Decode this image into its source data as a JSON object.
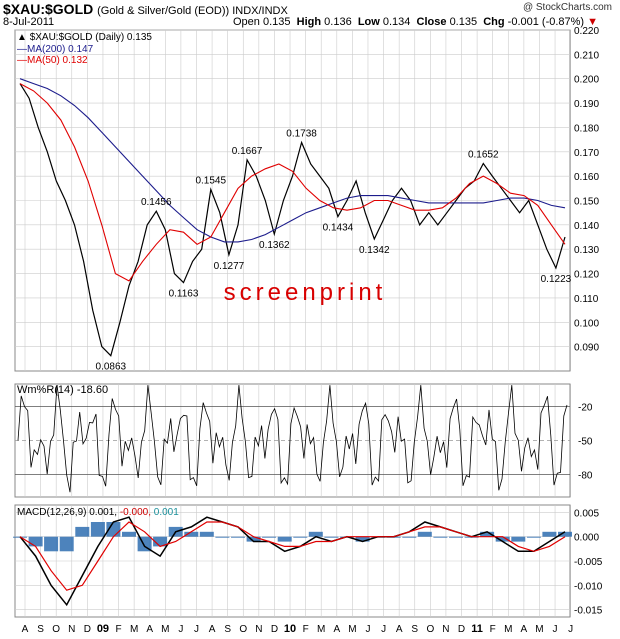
{
  "header": {
    "symbol": "$XAU:$GOLD",
    "subtitle": "(Gold & Silver/Gold (EOD)) INDX/INDX",
    "date": "8-Jul-2011",
    "open_label": "Open",
    "open": "0.135",
    "high_label": "High",
    "high": "0.136",
    "low_label": "Low",
    "low": "0.134",
    "close_label": "Close",
    "close": "0.135",
    "chg_label": "Chg",
    "chg": "-0.001 (-0.87%)",
    "credit": "@ StockCharts.com"
  },
  "watermark": "screenprint",
  "legend": {
    "main": "$XAU:$GOLD (Daily) 0.135",
    "ma200": "MA(200) 0.147",
    "ma50": "MA(50) 0.132",
    "wmr": "Wm%R(14) -18.60",
    "macd_prefix": "MACD(12,26,9) 0.001,",
    "macd_sig": "-0.000,",
    "macd_hist": "0.001"
  },
  "colors": {
    "price": "#000000",
    "ma200": "#1c1c8c",
    "ma50": "#e00000",
    "up_bar": "#000000",
    "down_bar": "#d00000",
    "macd_line": "#000000",
    "signal_line": "#e00000",
    "histogram": "#2e6db0",
    "grid": "#cccccc",
    "watermark": "#d80000"
  },
  "chart_data": {
    "type": "line",
    "x_axis_labels": [
      "A",
      "S",
      "O",
      "N",
      "D",
      "09",
      "F",
      "M",
      "A",
      "M",
      "J",
      "J",
      "A",
      "S",
      "O",
      "N",
      "D",
      "10",
      "F",
      "M",
      "A",
      "M",
      "J",
      "J",
      "A",
      "S",
      "O",
      "N",
      "D",
      "11",
      "F",
      "M",
      "A",
      "M",
      "J",
      "J"
    ],
    "price_panel": {
      "ylim": [
        0.08,
        0.22
      ],
      "y_ticks": [
        "0.090",
        "0.100",
        "0.110",
        "0.120",
        "0.130",
        "0.140",
        "0.150",
        "0.160",
        "0.170",
        "0.180",
        "0.190",
        "0.200",
        "0.210",
        "0.220"
      ],
      "annotations": [
        "0.0863",
        "0.1163",
        "0.1277",
        "0.1362",
        "0.1434",
        "0.1342",
        "0.1456",
        "0.1545",
        "0.1667",
        "0.1738",
        "0.1652",
        "0.1223"
      ],
      "series": [
        {
          "name": "$XAU:$GOLD",
          "values": [
            0.198,
            0.192,
            0.18,
            0.17,
            0.158,
            0.15,
            0.14,
            0.125,
            0.105,
            0.09,
            0.0863,
            0.1,
            0.115,
            0.125,
            0.14,
            0.1456,
            0.138,
            0.12,
            0.1163,
            0.125,
            0.13,
            0.1545,
            0.145,
            0.1277,
            0.14,
            0.1667,
            0.16,
            0.15,
            0.1362,
            0.15,
            0.16,
            0.1738,
            0.165,
            0.16,
            0.155,
            0.1434,
            0.15,
            0.158,
            0.145,
            0.1342,
            0.142,
            0.15,
            0.155,
            0.15,
            0.14,
            0.145,
            0.14,
            0.145,
            0.15,
            0.155,
            0.158,
            0.1652,
            0.16,
            0.155,
            0.15,
            0.145,
            0.15,
            0.14,
            0.13,
            0.1223,
            0.135
          ]
        },
        {
          "name": "MA(200) 0.147",
          "values": [
            0.2,
            0.198,
            0.196,
            0.193,
            0.189,
            0.184,
            0.178,
            0.172,
            0.166,
            0.16,
            0.154,
            0.148,
            0.143,
            0.138,
            0.135,
            0.133,
            0.133,
            0.134,
            0.136,
            0.139,
            0.142,
            0.145,
            0.147,
            0.149,
            0.151,
            0.152,
            0.152,
            0.152,
            0.151,
            0.15,
            0.149,
            0.149,
            0.149,
            0.149,
            0.149,
            0.15,
            0.151,
            0.151,
            0.15,
            0.148,
            0.147
          ]
        },
        {
          "name": "MA(50) 0.132",
          "values": [
            0.198,
            0.195,
            0.19,
            0.183,
            0.172,
            0.158,
            0.14,
            0.12,
            0.117,
            0.125,
            0.132,
            0.138,
            0.137,
            0.132,
            0.135,
            0.145,
            0.155,
            0.16,
            0.163,
            0.165,
            0.162,
            0.155,
            0.15,
            0.147,
            0.146,
            0.147,
            0.15,
            0.15,
            0.148,
            0.146,
            0.146,
            0.147,
            0.151,
            0.157,
            0.16,
            0.157,
            0.153,
            0.152,
            0.148,
            0.14,
            0.132
          ]
        }
      ]
    },
    "wmr_panel": {
      "ylim": [
        -100,
        0
      ],
      "y_ticks": [
        "-20",
        "-50",
        "-80"
      ],
      "latest": -18.6
    },
    "macd_panel": {
      "ylim": [
        -0.0165,
        0.0065
      ],
      "y_ticks": [
        "0.005",
        "0.000",
        "-0.005",
        "-0.010",
        "-0.015"
      ],
      "series": [
        {
          "name": "MACD(12,26,9) 0.001",
          "values": [
            0.0,
            -0.004,
            -0.01,
            -0.014,
            -0.008,
            -0.002,
            0.003,
            0.004,
            -0.002,
            -0.004,
            0.001,
            0.002,
            0.004,
            0.003,
            0.002,
            -0.001,
            -0.001,
            -0.003,
            -0.002,
            0.0,
            -0.001,
            0.0,
            -0.001,
            0.0,
            0.0,
            0.001,
            0.003,
            0.002,
            0.001,
            0.0,
            0.001,
            -0.001,
            -0.003,
            -0.003,
            -0.001,
            0.001
          ]
        },
        {
          "name": "-0.000",
          "values": [
            0.0,
            -0.002,
            -0.007,
            -0.011,
            -0.01,
            -0.005,
            0.0,
            0.003,
            0.001,
            -0.002,
            -0.001,
            0.001,
            0.003,
            0.003,
            0.002,
            0.0,
            -0.001,
            -0.002,
            -0.002,
            -0.001,
            -0.001,
            0.0,
            0.0,
            0.0,
            0.0,
            0.001,
            0.002,
            0.002,
            0.001,
            0.0,
            0.0,
            0.0,
            -0.002,
            -0.003,
            -0.002,
            0.0
          ]
        },
        {
          "name": "0.001",
          "values": [
            0.0,
            -0.002,
            -0.003,
            -0.003,
            0.002,
            0.003,
            0.003,
            0.001,
            -0.003,
            -0.002,
            0.002,
            0.001,
            0.001,
            0.0,
            0.0,
            -0.001,
            0.0,
            -0.001,
            0.0,
            0.001,
            0.0,
            0.0,
            -0.001,
            0.0,
            0.0,
            0.0,
            0.001,
            0.0,
            0.0,
            0.0,
            0.001,
            -0.001,
            -0.001,
            0.0,
            0.001,
            0.001
          ]
        }
      ]
    }
  }
}
